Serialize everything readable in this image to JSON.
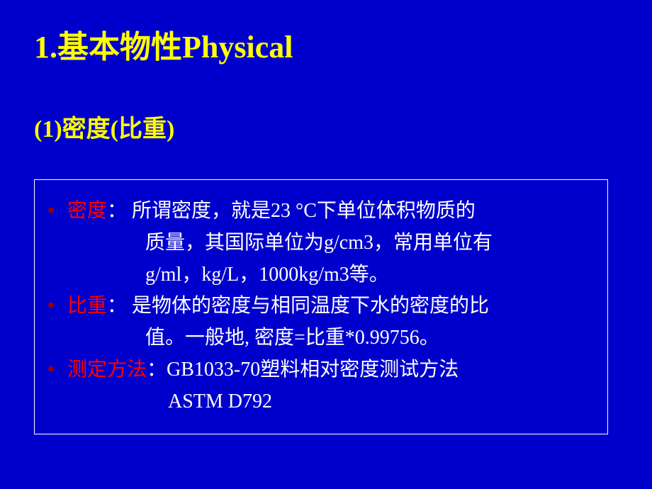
{
  "slide": {
    "background_color": "#0000cc",
    "title": {
      "text": "1.基本物性Physical",
      "color": "#ffff00",
      "fontsize": 44,
      "bold": true
    },
    "subtitle": {
      "text": "(1)密度(比重)",
      "color": "#ffff00",
      "fontsize": 34,
      "bold": true
    },
    "box": {
      "border_color": "#ffffff",
      "border_width": 1
    },
    "bullet_color": "#990000",
    "label_color": "#ff0000",
    "body_color": "#ffffff",
    "body_fontsize": 28,
    "items": {
      "density": {
        "label": "密度",
        "line1": "： 所谓密度，就是23 °C下单位体积物质的",
        "line2": "质量，其国际单位为g/cm3，常用单位有",
        "line3": "g/ml，kg/L，1000kg/m3等。"
      },
      "sg": {
        "label": "比重",
        "line1": "： 是物体的密度与相同温度下水的密度的比",
        "line2": "值。一般地, 密度=比重*0.99756。"
      },
      "method": {
        "label": "测定方法",
        "line1": "：GB1033-70塑料相对密度测试方法",
        "line2": "ASTM D792"
      }
    }
  }
}
